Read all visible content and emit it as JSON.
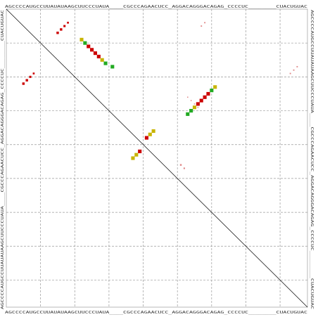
{
  "sequence_label": "AGCCCCAUGCCUUAUAUAAGCUUCCCUAUA____CGCCCAGAACUCC_AGGACAGGGACAGAG_CCCCUC________CUACUGUAC",
  "colors": {
    "red": "#cc0000",
    "green": "#22aa22",
    "yellow": "#c8b400",
    "faint": "#e08a8a",
    "diagonal": "#000000",
    "grid": "#9a9a9a"
  },
  "dotplot": {
    "length": 88,
    "grid_every": 10,
    "lower_triangle": [
      {
        "i": 22,
        "j": 9,
        "color": "yellow"
      },
      {
        "i": 23,
        "j": 10,
        "color": "green"
      },
      {
        "i": 24,
        "j": 11,
        "color": "red"
      },
      {
        "i": 25,
        "j": 12,
        "color": "red"
      },
      {
        "i": 26,
        "j": 13,
        "color": "red"
      },
      {
        "i": 27,
        "j": 14,
        "color": "red"
      },
      {
        "i": 28,
        "j": 15,
        "color": "yellow"
      },
      {
        "i": 29,
        "j": 16,
        "color": "green"
      },
      {
        "i": 31,
        "j": 17,
        "color": "green"
      },
      {
        "i": 37,
        "j": 44,
        "color": "yellow"
      },
      {
        "i": 38,
        "j": 43,
        "color": "yellow"
      },
      {
        "i": 39,
        "j": 42,
        "color": "red"
      },
      {
        "i": 41,
        "j": 38,
        "color": "red"
      },
      {
        "i": 42,
        "j": 37,
        "color": "yellow"
      },
      {
        "i": 43,
        "j": 36,
        "color": "yellow"
      },
      {
        "i": 53,
        "j": 31,
        "color": "green"
      },
      {
        "i": 54,
        "j": 30,
        "color": "green"
      },
      {
        "i": 55,
        "j": 29,
        "color": "yellow"
      },
      {
        "i": 56,
        "j": 28,
        "color": "red"
      },
      {
        "i": 57,
        "j": 27,
        "color": "red"
      },
      {
        "i": 58,
        "j": 26,
        "color": "red"
      },
      {
        "i": 59,
        "j": 25,
        "color": "red"
      },
      {
        "i": 60,
        "j": 24,
        "color": "green"
      },
      {
        "i": 61,
        "j": 23,
        "color": "yellow"
      }
    ],
    "upper_triangle": [
      {
        "i": 5,
        "j": 22,
        "prob": 0.5
      },
      {
        "i": 6,
        "j": 21,
        "prob": 0.5
      },
      {
        "i": 7,
        "j": 20,
        "prob": 0.4
      },
      {
        "i": 8,
        "j": 19,
        "prob": 0.3
      },
      {
        "i": 15,
        "j": 7,
        "prob": 0.5
      },
      {
        "i": 16,
        "j": 6,
        "prob": 0.5
      },
      {
        "i": 17,
        "j": 5,
        "prob": 0.4
      },
      {
        "i": 18,
        "j": 4,
        "prob": 0.3
      },
      {
        "i": 53,
        "j": 26,
        "prob": 0.1
      },
      {
        "i": 54,
        "j": 27,
        "prob": 0.1
      },
      {
        "i": 55,
        "j": 28,
        "prob": 0.1
      },
      {
        "i": 56,
        "j": 29,
        "prob": 0.1
      },
      {
        "i": 57,
        "j": 5,
        "prob": 0.15
      },
      {
        "i": 58,
        "j": 4,
        "prob": 0.15
      },
      {
        "i": 51,
        "j": 46,
        "prob": 0.25
      },
      {
        "i": 52,
        "j": 47,
        "prob": 0.2
      },
      {
        "i": 83,
        "j": 19,
        "prob": 0.15
      },
      {
        "i": 84,
        "j": 18,
        "prob": 0.15
      },
      {
        "i": 85,
        "j": 17,
        "prob": 0.15
      }
    ]
  }
}
